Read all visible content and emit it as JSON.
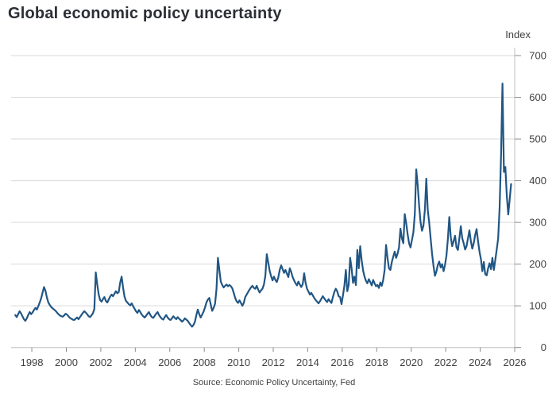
{
  "title": "Global economic policy uncertainty",
  "source": "Source: Economic Policy Uncertainty, Fed",
  "y_axis": {
    "label": "Index"
  },
  "colors": {
    "line": "#215684",
    "grid": "#d9d9d9",
    "axis": "#c0c0c0",
    "tick": "#8c8c8c",
    "text": "#404040"
  },
  "chart_data": {
    "type": "line",
    "title": "Global economic policy uncertainty",
    "xlabel": "",
    "ylabel": "Index",
    "ylim": [
      0,
      700
    ],
    "y_ticks": [
      0,
      100,
      200,
      300,
      400,
      500,
      600,
      700
    ],
    "xlim": [
      1996.8,
      2026.0
    ],
    "x_ticks": [
      1998,
      2000,
      2002,
      2004,
      2006,
      2008,
      2010,
      2012,
      2014,
      2016,
      2018,
      2020,
      2022,
      2024,
      2026
    ],
    "grid": "horizontal",
    "legend": "none",
    "frequency": "monthly",
    "start": "1997-01",
    "end": "2025-10",
    "series": [
      {
        "name": "Global economic policy uncertainty index",
        "values": [
          78,
          73,
          80,
          87,
          82,
          75,
          68,
          64,
          70,
          78,
          85,
          80,
          84,
          90,
          95,
          91,
          99,
          108,
          118,
          132,
          145,
          136,
          120,
          108,
          102,
          97,
          94,
          91,
          88,
          84,
          80,
          77,
          75,
          74,
          77,
          81,
          79,
          75,
          71,
          69,
          67,
          66,
          69,
          72,
          68,
          73,
          78,
          83,
          87,
          84,
          80,
          75,
          73,
          77,
          82,
          92,
          180,
          152,
          128,
          114,
          110,
          116,
          121,
          112,
          108,
          115,
          122,
          127,
          123,
          129,
          135,
          130,
          133,
          156,
          170,
          144,
          122,
          112,
          108,
          104,
          101,
          106,
          99,
          93,
          87,
          83,
          90,
          85,
          79,
          75,
          72,
          76,
          81,
          85,
          78,
          73,
          71,
          76,
          81,
          85,
          78,
          73,
          69,
          67,
          73,
          78,
          72,
          68,
          66,
          70,
          75,
          71,
          68,
          73,
          69,
          66,
          62,
          65,
          70,
          67,
          64,
          59,
          54,
          50,
          54,
          62,
          78,
          91,
          80,
          72,
          79,
          86,
          96,
          108,
          115,
          119,
          103,
          88,
          95,
          105,
          140,
          215,
          186,
          158,
          150,
          144,
          148,
          151,
          147,
          150,
          147,
          142,
          131,
          119,
          111,
          107,
          113,
          107,
          100,
          107,
          121,
          127,
          133,
          139,
          144,
          148,
          143,
          141,
          148,
          139,
          132,
          137,
          141,
          151,
          172,
          224,
          204,
          184,
          171,
          161,
          170,
          162,
          157,
          168,
          186,
          197,
          188,
          179,
          186,
          177,
          169,
          190,
          181,
          169,
          161,
          154,
          149,
          158,
          151,
          145,
          152,
          178,
          155,
          141,
          134,
          127,
          131,
          125,
          119,
          114,
          110,
          106,
          111,
          117,
          123,
          118,
          113,
          109,
          116,
          111,
          107,
          121,
          133,
          141,
          135,
          123,
          121,
          104,
          125,
          148,
          186,
          135,
          150,
          215,
          190,
          155,
          170,
          150,
          234,
          190,
          243,
          210,
          185,
          170,
          160,
          154,
          164,
          157,
          149,
          162,
          154,
          147,
          150,
          143,
          156,
          148,
          162,
          186,
          246,
          215,
          190,
          186,
          205,
          218,
          230,
          215,
          225,
          240,
          285,
          262,
          250,
          320,
          298,
          272,
          250,
          240,
          258,
          276,
          320,
          427,
          390,
          340,
          300,
          280,
          292,
          330,
          405,
          330,
          300,
          262,
          225,
          196,
          172,
          182,
          198,
          206,
          192,
          200,
          183,
          198,
          220,
          260,
          313,
          265,
          243,
          255,
          268,
          240,
          234,
          262,
          291,
          262,
          250,
          235,
          243,
          262,
          281,
          255,
          237,
          250,
          270,
          284,
          255,
          230,
          212,
          183,
          205,
          176,
          173,
          190,
          202,
          188,
          215,
          186,
          210,
          235,
          262,
          335,
          460,
          633,
          421,
          433,
          364,
          319,
          355,
          392
        ]
      }
    ]
  }
}
